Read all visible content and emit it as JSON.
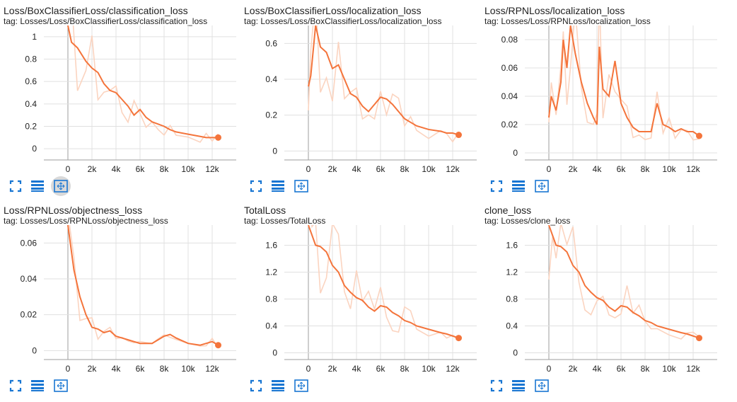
{
  "colors": {
    "smoothed": "#f4743b",
    "raw": "#fbd4c0",
    "icon": "#1976d2",
    "axis": "#9e9e9e",
    "grid": "#e0e0e0"
  },
  "icons": [
    "fullscreen-icon",
    "data-table-icon",
    "fit-domain-icon"
  ],
  "chart_data": [
    {
      "type": "line",
      "title": "Loss/BoxClassifierLoss/classification_loss",
      "tag": "tag: Losses/Loss/BoxClassifierLoss/classification_loss",
      "xticks": [
        "0",
        "2k",
        "4k",
        "6k",
        "8k",
        "10k",
        "12k"
      ],
      "yticks": [
        "0",
        "0.2",
        "0.4",
        "0.6",
        "0.8",
        "1"
      ],
      "xlim": [
        -2000,
        14000
      ],
      "ylim": [
        -0.1,
        1.1
      ],
      "series": [
        {
          "x": [
            0,
            300,
            800,
            1500,
            2000,
            2500,
            3000,
            3500,
            4000,
            4500,
            5000,
            5500,
            6000,
            6500,
            7000,
            7500,
            8000,
            8500,
            9000,
            10000,
            11000,
            11500,
            12000,
            12500
          ],
          "y": [
            1.1,
            0.95,
            0.9,
            0.78,
            0.72,
            0.68,
            0.58,
            0.52,
            0.5,
            0.44,
            0.38,
            0.3,
            0.35,
            0.28,
            0.24,
            0.22,
            0.2,
            0.17,
            0.15,
            0.13,
            0.11,
            0.1,
            0.1,
            0.1
          ]
        }
      ]
    },
    {
      "type": "line",
      "title": "Loss/BoxClassifierLoss/localization_loss",
      "tag": "tag: Losses/Loss/BoxClassifierLoss/localization_loss",
      "xticks": [
        "0",
        "2k",
        "4k",
        "6k",
        "8k",
        "10k",
        "12k"
      ],
      "yticks": [
        "0",
        "0.2",
        "0.4",
        "0.6"
      ],
      "xlim": [
        -2000,
        14000
      ],
      "ylim": [
        -0.05,
        0.7
      ],
      "series": [
        {
          "x": [
            0,
            200,
            600,
            1000,
            1500,
            2000,
            2500,
            3000,
            3500,
            4000,
            4500,
            5000,
            5500,
            6000,
            6500,
            7000,
            7500,
            8000,
            8500,
            9000,
            10000,
            11000,
            11500,
            12000,
            12500
          ],
          "y": [
            0.36,
            0.42,
            0.7,
            0.58,
            0.55,
            0.46,
            0.48,
            0.4,
            0.32,
            0.3,
            0.25,
            0.22,
            0.26,
            0.3,
            0.29,
            0.26,
            0.22,
            0.18,
            0.16,
            0.14,
            0.12,
            0.11,
            0.1,
            0.1,
            0.09
          ]
        }
      ]
    },
    {
      "type": "line",
      "title": "Loss/RPNLoss/localization_loss",
      "tag": "tag: Losses/Loss/RPNLoss/localization_loss",
      "xticks": [
        "0",
        "2k",
        "4k",
        "6k",
        "8k",
        "10k",
        "12k"
      ],
      "yticks": [
        "0",
        "0.02",
        "0.04",
        "0.06",
        "0.08"
      ],
      "xlim": [
        -2000,
        14000
      ],
      "ylim": [
        -0.005,
        0.09
      ],
      "series": [
        {
          "x": [
            0,
            200,
            600,
            1000,
            1200,
            1500,
            1800,
            2200,
            2700,
            3200,
            3700,
            4000,
            4200,
            4500,
            5000,
            5500,
            6000,
            6500,
            7000,
            7500,
            8000,
            8500,
            9000,
            9500,
            10000,
            10500,
            11000,
            11500,
            12000,
            12500
          ],
          "y": [
            0.025,
            0.04,
            0.03,
            0.05,
            0.08,
            0.06,
            0.09,
            0.07,
            0.05,
            0.035,
            0.025,
            0.02,
            0.075,
            0.045,
            0.04,
            0.065,
            0.035,
            0.025,
            0.018,
            0.015,
            0.015,
            0.015,
            0.035,
            0.02,
            0.018,
            0.015,
            0.017,
            0.015,
            0.015,
            0.012
          ]
        }
      ]
    },
    {
      "type": "line",
      "title": "Loss/RPNLoss/objectness_loss",
      "tag": "tag: Losses/Loss/RPNLoss/objectness_loss",
      "xticks": [
        "0",
        "2k",
        "4k",
        "6k",
        "8k",
        "10k",
        "12k"
      ],
      "yticks": [
        "0",
        "0.02",
        "0.04",
        "0.06"
      ],
      "xlim": [
        -2000,
        14000
      ],
      "ylim": [
        -0.005,
        0.07
      ],
      "series": [
        {
          "x": [
            0,
            500,
            1000,
            1500,
            2000,
            2500,
            3000,
            3500,
            4000,
            4500,
            5000,
            5500,
            6000,
            7000,
            7500,
            8000,
            8500,
            9000,
            10000,
            11000,
            11500,
            12000,
            12500
          ],
          "y": [
            0.07,
            0.045,
            0.03,
            0.02,
            0.013,
            0.012,
            0.01,
            0.011,
            0.008,
            0.007,
            0.006,
            0.005,
            0.004,
            0.004,
            0.006,
            0.008,
            0.009,
            0.007,
            0.004,
            0.003,
            0.004,
            0.005,
            0.003
          ]
        }
      ]
    },
    {
      "type": "line",
      "title": "TotalLoss",
      "tag": "tag: Losses/TotalLoss",
      "xticks": [
        "0",
        "2k",
        "4k",
        "6k",
        "8k",
        "10k",
        "12k"
      ],
      "yticks": [
        "0",
        "0.4",
        "0.8",
        "1.2",
        "1.6"
      ],
      "xlim": [
        -2000,
        14000
      ],
      "ylim": [
        -0.1,
        1.9
      ],
      "series": [
        {
          "x": [
            0,
            300,
            600,
            1000,
            1500,
            2000,
            2500,
            3000,
            3500,
            4000,
            4500,
            5000,
            5500,
            6000,
            6500,
            7000,
            7500,
            8000,
            8500,
            9000,
            10000,
            11000,
            11500,
            12000,
            12500
          ],
          "y": [
            1.9,
            1.75,
            1.6,
            1.58,
            1.5,
            1.3,
            1.2,
            1.0,
            0.9,
            0.82,
            0.78,
            0.68,
            0.62,
            0.7,
            0.68,
            0.6,
            0.55,
            0.48,
            0.45,
            0.4,
            0.35,
            0.3,
            0.28,
            0.25,
            0.22
          ]
        }
      ]
    },
    {
      "type": "line",
      "title": "clone_loss",
      "tag": "tag: Losses/clone_loss",
      "xticks": [
        "0",
        "2k",
        "4k",
        "6k",
        "8k",
        "10k",
        "12k"
      ],
      "yticks": [
        "0",
        "0.4",
        "0.8",
        "1.2",
        "1.6"
      ],
      "xlim": [
        -2000,
        14000
      ],
      "ylim": [
        -0.1,
        1.9
      ],
      "series": [
        {
          "x": [
            0,
            300,
            600,
            1000,
            1500,
            2000,
            2500,
            3000,
            3500,
            4000,
            4500,
            5000,
            5500,
            6000,
            6500,
            7000,
            7500,
            8000,
            8500,
            9000,
            10000,
            11000,
            11500,
            12000,
            12500
          ],
          "y": [
            1.9,
            1.75,
            1.6,
            1.58,
            1.5,
            1.3,
            1.2,
            1.0,
            0.9,
            0.82,
            0.78,
            0.68,
            0.62,
            0.7,
            0.68,
            0.6,
            0.55,
            0.48,
            0.45,
            0.4,
            0.35,
            0.3,
            0.28,
            0.25,
            0.22
          ]
        }
      ]
    }
  ]
}
